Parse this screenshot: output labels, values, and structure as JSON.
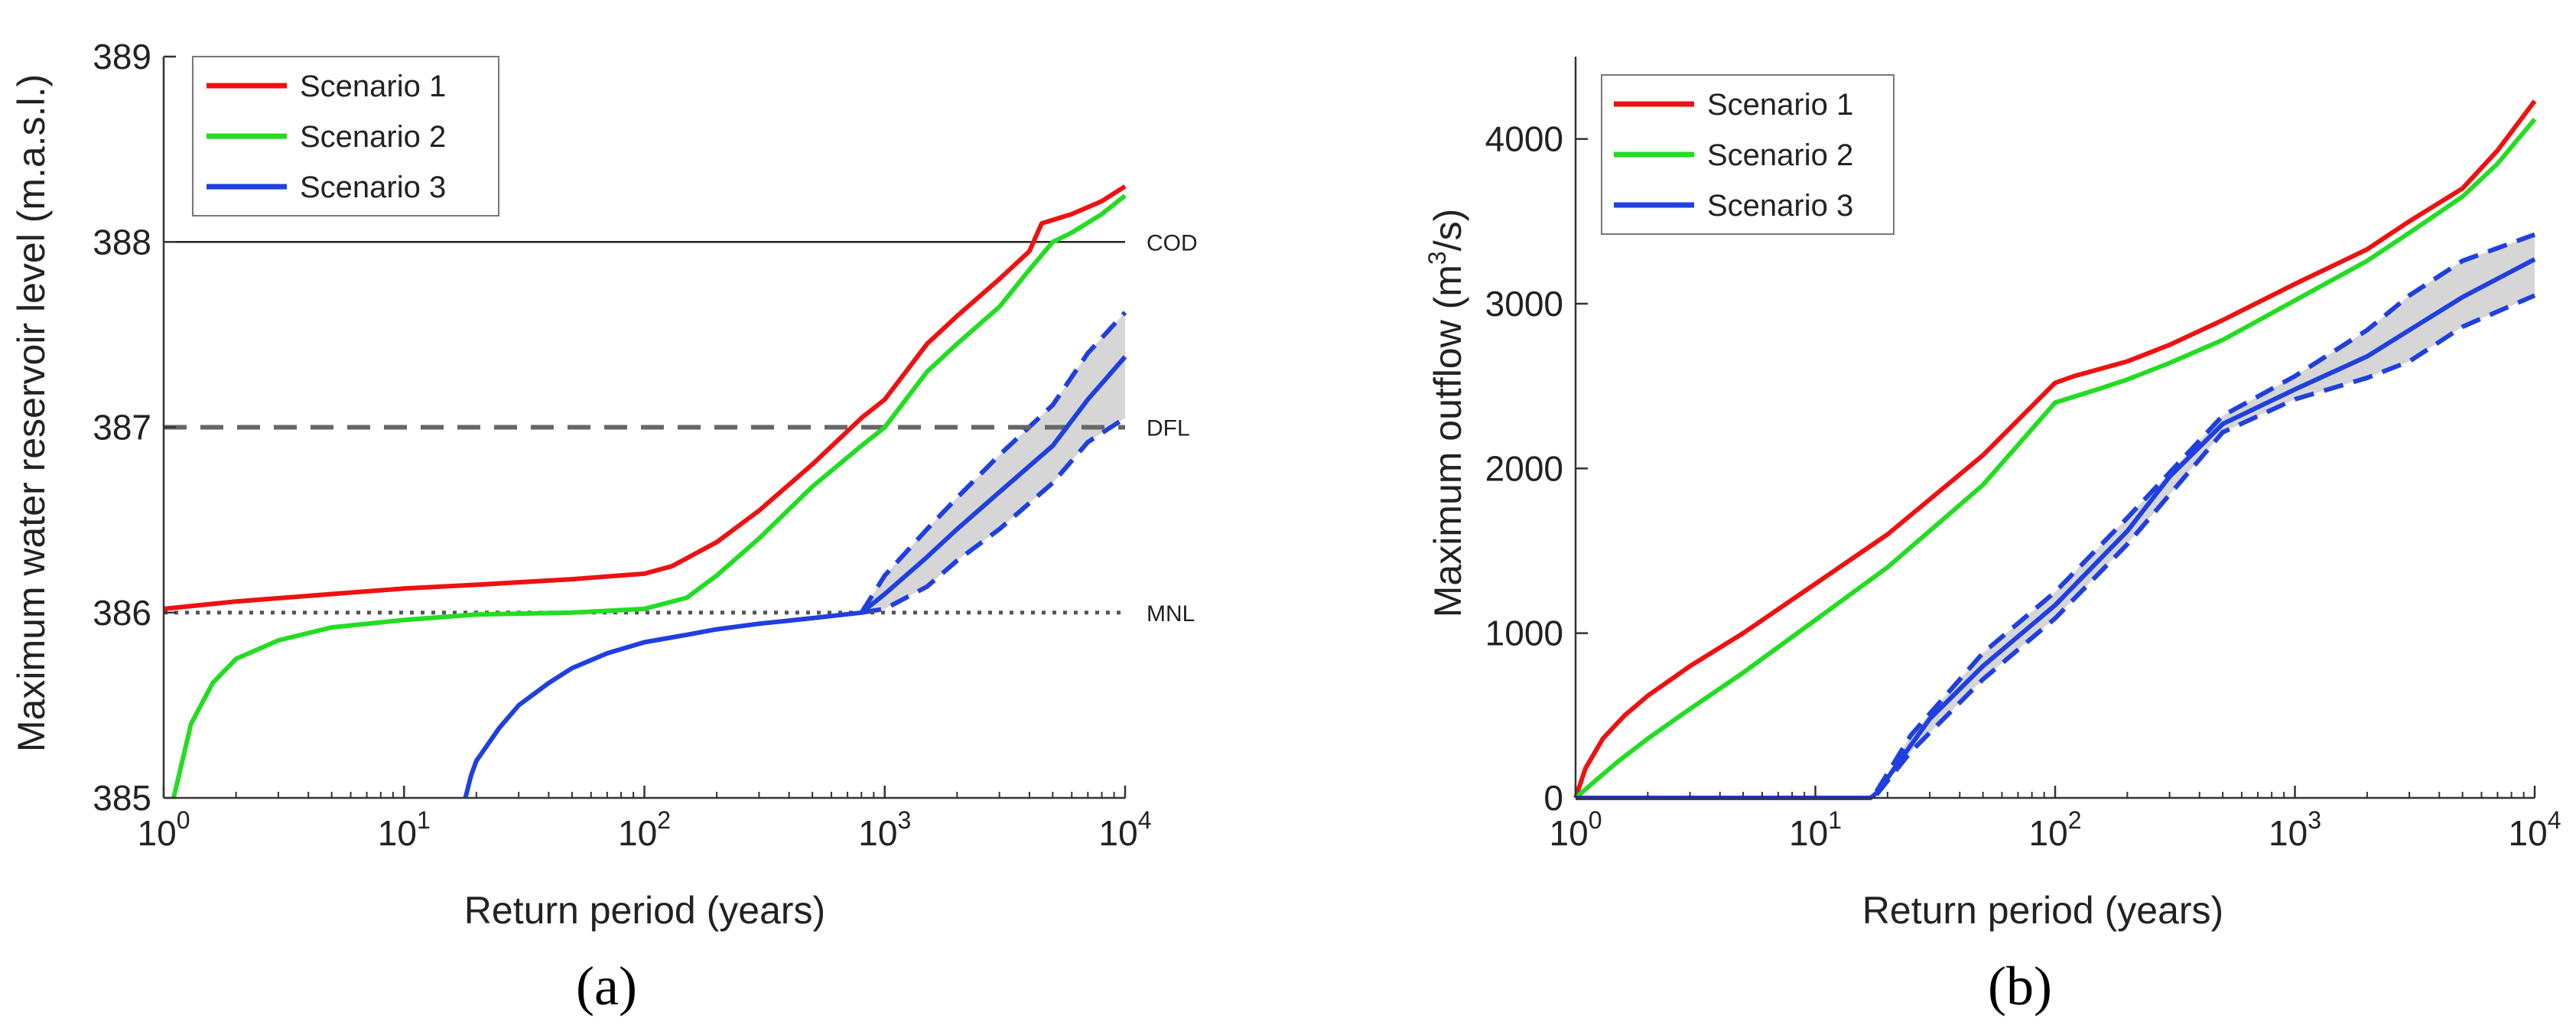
{
  "chart_data": [
    {
      "type": "line",
      "panel_label": "(a)",
      "xlabel": "Return period (years)",
      "ylabel": "Maximum water reservoir level (m.a.s.l.)",
      "xscale": "log",
      "xlim": [
        1,
        10000
      ],
      "ylim": [
        385,
        389
      ],
      "x_ticks": [
        {
          "base": "10",
          "exp": "0"
        },
        {
          "base": "10",
          "exp": "1"
        },
        {
          "base": "10",
          "exp": "2"
        },
        {
          "base": "10",
          "exp": "3"
        },
        {
          "base": "10",
          "exp": "4"
        }
      ],
      "y_ticks": [
        "385",
        "386",
        "387",
        "388",
        "389"
      ],
      "legend": {
        "placement": "top-left",
        "entries": [
          "Scenario 1",
          "Scenario 2",
          "Scenario 3"
        ]
      },
      "reference_lines": [
        {
          "label": "COD",
          "y": 388,
          "style": "solid"
        },
        {
          "label": "DFL",
          "y": 387,
          "style": "dashed"
        },
        {
          "label": "MNL",
          "y": 386,
          "style": "dotted"
        }
      ],
      "series": [
        {
          "name": "Scenario 1",
          "color": "#ee1111",
          "x": [
            1,
            2,
            5,
            10,
            20,
            50,
            100,
            130,
            200,
            300,
            500,
            800,
            1000,
            1500,
            2000,
            3000,
            4000,
            4500,
            6000,
            8000,
            10000
          ],
          "y": [
            386.02,
            386.06,
            386.1,
            386.13,
            386.15,
            386.18,
            386.21,
            386.25,
            386.38,
            386.55,
            386.8,
            387.05,
            387.15,
            387.45,
            387.6,
            387.8,
            387.95,
            388.1,
            388.15,
            388.22,
            388.3
          ]
        },
        {
          "name": "Scenario 2",
          "color": "#22dd22",
          "x": [
            1.1,
            1.3,
            1.6,
            2,
            3,
            5,
            10,
            20,
            50,
            100,
            150,
            200,
            300,
            500,
            800,
            1000,
            1500,
            2000,
            3000,
            4000,
            5000,
            6000,
            8000,
            10000
          ],
          "y": [
            385.0,
            385.4,
            385.62,
            385.75,
            385.85,
            385.92,
            385.96,
            385.99,
            386.0,
            386.02,
            386.08,
            386.2,
            386.4,
            386.68,
            386.9,
            387.0,
            387.3,
            387.45,
            387.65,
            387.85,
            388.0,
            388.05,
            388.15,
            388.25
          ]
        },
        {
          "name": "Scenario 3",
          "color": "#1f3fe0",
          "x": [
            18,
            19,
            20,
            25,
            30,
            40,
            50,
            70,
            100,
            150,
            200,
            300,
            500,
            800,
            1000,
            1500,
            2000,
            3000,
            5000,
            7000,
            10000
          ],
          "y": [
            385.0,
            385.12,
            385.2,
            385.38,
            385.5,
            385.62,
            385.7,
            385.78,
            385.84,
            385.88,
            385.91,
            385.94,
            385.97,
            386.0,
            386.1,
            386.3,
            386.45,
            386.65,
            386.9,
            387.15,
            387.38
          ]
        }
      ],
      "uncertainty_band": {
        "series": "Scenario 3",
        "color": "#c8c8c8",
        "x": [
          800,
          1000,
          1500,
          2000,
          3000,
          5000,
          7000,
          10000
        ],
        "upper": [
          386.0,
          386.2,
          386.45,
          386.62,
          386.85,
          387.12,
          387.4,
          387.62
        ],
        "lower": [
          386.0,
          386.02,
          386.14,
          386.28,
          386.45,
          386.7,
          386.92,
          387.05
        ]
      }
    },
    {
      "type": "line",
      "panel_label": "(b)",
      "xlabel": "Return period (years)",
      "ylabel": {
        "prefix": "Maximum outflow (m",
        "sup": "3",
        "suffix": "/s)"
      },
      "xscale": "log",
      "xlim": [
        1,
        10000
      ],
      "ylim": [
        0,
        4500
      ],
      "x_ticks": [
        {
          "base": "10",
          "exp": "0"
        },
        {
          "base": "10",
          "exp": "1"
        },
        {
          "base": "10",
          "exp": "2"
        },
        {
          "base": "10",
          "exp": "3"
        },
        {
          "base": "10",
          "exp": "4"
        }
      ],
      "y_ticks": [
        "0",
        "1000",
        "2000",
        "3000",
        "4000"
      ],
      "legend": {
        "placement": "top-left",
        "entries": [
          "Scenario 1",
          "Scenario 2",
          "Scenario 3"
        ]
      },
      "series": [
        {
          "name": "Scenario 1",
          "color": "#ee1111",
          "x": [
            1,
            1.1,
            1.3,
            1.6,
            2,
            3,
            5,
            10,
            20,
            50,
            100,
            120,
            200,
            300,
            500,
            1000,
            2000,
            3000,
            5000,
            7000,
            10000
          ],
          "y": [
            0,
            180,
            360,
            500,
            620,
            800,
            1000,
            1300,
            1600,
            2080,
            2520,
            2560,
            2650,
            2750,
            2900,
            3120,
            3330,
            3500,
            3700,
            3930,
            4230
          ]
        },
        {
          "name": "Scenario 2",
          "color": "#22dd22",
          "x": [
            1,
            1.2,
            1.5,
            2,
            3,
            5,
            10,
            20,
            50,
            100,
            150,
            200,
            300,
            500,
            1000,
            2000,
            3000,
            5000,
            7000,
            10000
          ],
          "y": [
            0,
            100,
            220,
            360,
            540,
            760,
            1080,
            1400,
            1900,
            2400,
            2480,
            2540,
            2640,
            2780,
            3020,
            3260,
            3430,
            3650,
            3850,
            4120
          ]
        },
        {
          "name": "Scenario 3",
          "color": "#1f3fe0",
          "x": [
            1,
            5,
            10,
            17,
            18,
            20,
            25,
            30,
            50,
            100,
            200,
            300,
            500,
            1000,
            2000,
            3000,
            5000,
            10000
          ],
          "y": [
            0,
            0,
            0,
            0,
            30,
            120,
            320,
            480,
            800,
            1170,
            1620,
            1950,
            2270,
            2480,
            2680,
            2840,
            3040,
            3270
          ]
        }
      ],
      "uncertainty_band": {
        "series": "Scenario 3",
        "color": "#c8c8c8",
        "x": [
          18,
          25,
          50,
          100,
          200,
          500,
          1000,
          2000,
          3000,
          5000,
          10000
        ],
        "upper": [
          40,
          380,
          880,
          1250,
          1700,
          2320,
          2560,
          2840,
          3050,
          3260,
          3420
        ],
        "lower": [
          20,
          280,
          720,
          1090,
          1540,
          2220,
          2420,
          2550,
          2650,
          2860,
          3050
        ]
      }
    }
  ]
}
